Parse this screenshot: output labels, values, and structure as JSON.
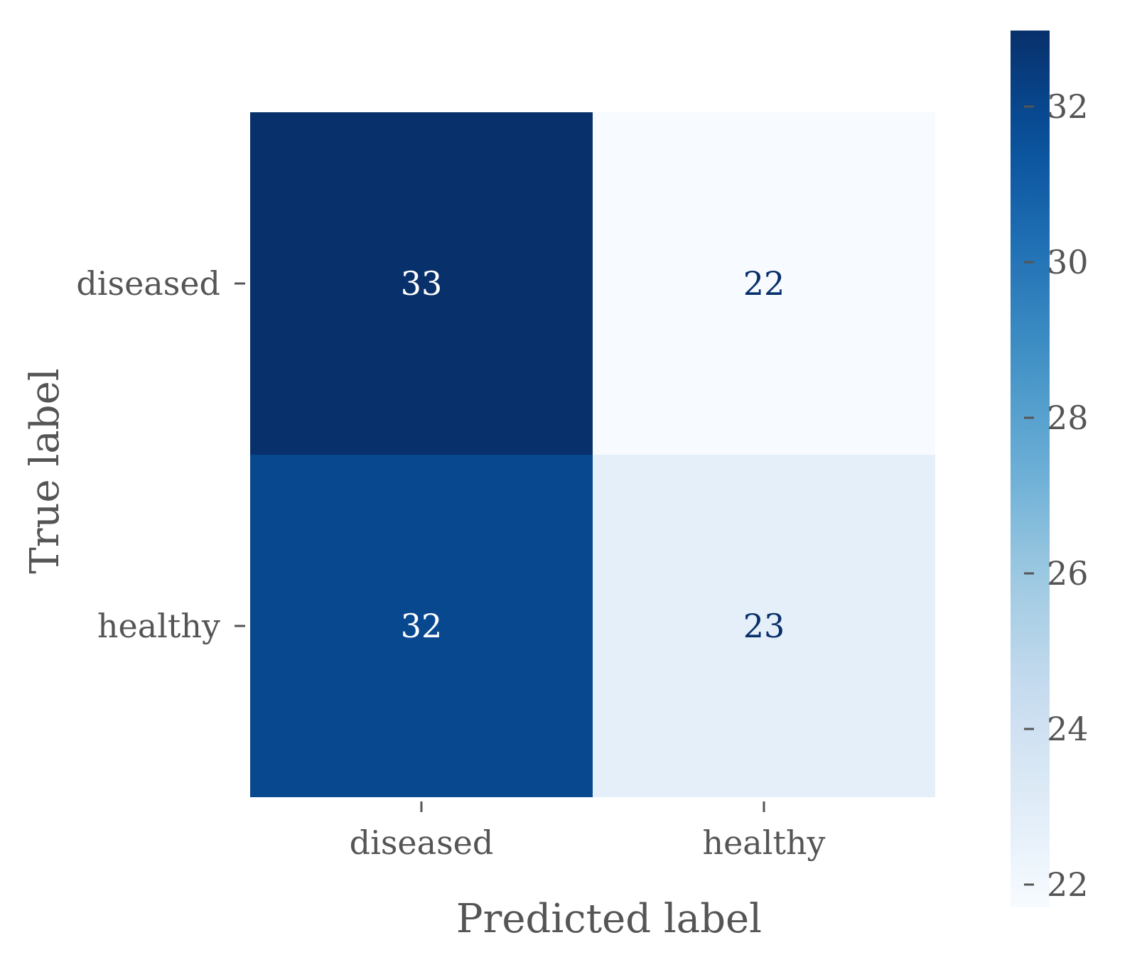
{
  "chart_data": {
    "type": "heatmap",
    "title": "",
    "xlabel": "Predicted label",
    "ylabel": "True label",
    "x_categories": [
      "diseased",
      "healthy"
    ],
    "y_categories": [
      "diseased",
      "healthy"
    ],
    "values": [
      [
        33,
        22
      ],
      [
        32,
        23
      ]
    ],
    "value_labels": [
      [
        "33",
        "22"
      ],
      [
        "32",
        "23"
      ]
    ],
    "colormap": "Blues",
    "colorbar": {
      "range": [
        22,
        33
      ],
      "ticks": [
        22,
        24,
        26,
        28,
        30,
        32
      ],
      "tick_labels": [
        "22",
        "24",
        "26",
        "28",
        "30",
        "32"
      ]
    },
    "grid": false,
    "legend": "none"
  }
}
